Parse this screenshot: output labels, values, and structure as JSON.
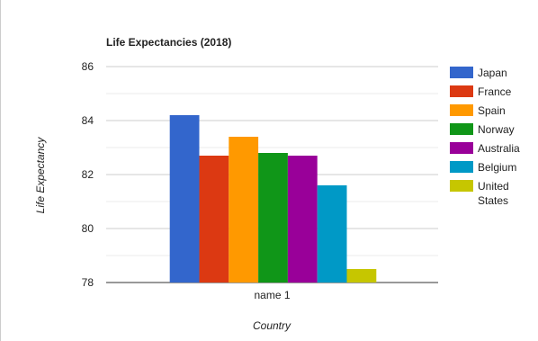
{
  "chart_data": {
    "type": "bar",
    "title": "Life Expectancies (2018)",
    "x_label": "Country",
    "y_label": "Life Expectancy",
    "categories": [
      "name 1"
    ],
    "series": [
      {
        "name": "Japan",
        "color": "#3366cc",
        "values": [
          84.2
        ]
      },
      {
        "name": "France",
        "color": "#dc3912",
        "values": [
          82.7
        ]
      },
      {
        "name": "Spain",
        "color": "#ff9900",
        "values": [
          83.4
        ]
      },
      {
        "name": "Norway",
        "color": "#109618",
        "values": [
          82.8
        ]
      },
      {
        "name": "Australia",
        "color": "#990099",
        "values": [
          82.7
        ]
      },
      {
        "name": "Belgium",
        "color": "#0099c6",
        "values": [
          81.6
        ]
      },
      {
        "name": "United States",
        "color": "#c6c600",
        "values": [
          78.5
        ]
      }
    ],
    "ylim": [
      78,
      86
    ],
    "yticks": [
      78,
      80,
      82,
      84,
      86
    ],
    "minor_yticks": [
      79,
      81,
      83,
      85
    ],
    "grid": true,
    "legend": "right"
  }
}
